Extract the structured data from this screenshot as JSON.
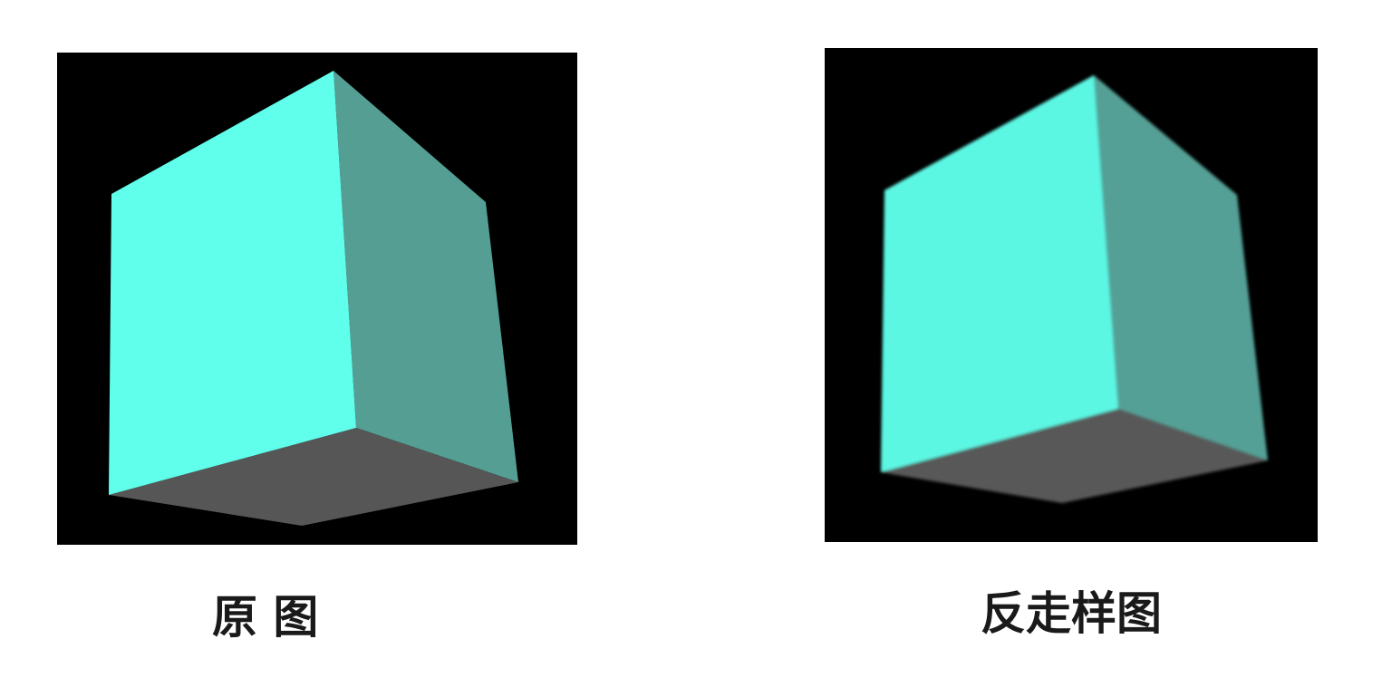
{
  "panels": [
    {
      "caption": "原 图",
      "colors": {
        "front_face": "#60FFEB",
        "right_face": "#559E94",
        "bottom_face": "#565656",
        "background": "#000000"
      }
    },
    {
      "caption": "反走样图",
      "colors": {
        "front_face": "#5CF7E3",
        "right_face": "#55A096",
        "bottom_face": "#585858",
        "background": "#000000"
      }
    }
  ]
}
